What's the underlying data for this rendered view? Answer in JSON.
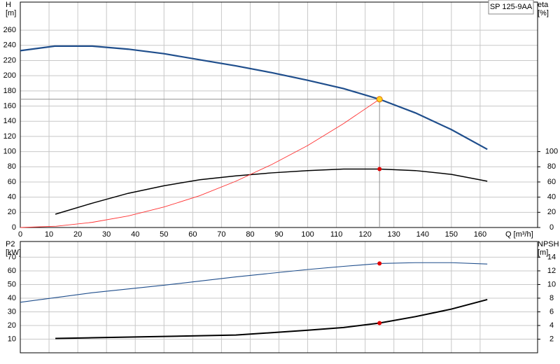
{
  "chart_data": [
    {
      "type": "line",
      "legend_label": "SP 125-9AA",
      "ylabel": [
        "H",
        "[m]"
      ],
      "y2label": [
        "eta",
        "[%]"
      ],
      "xlabel": "Q [m³/h]",
      "xlim": [
        0,
        180
      ],
      "ylim": [
        0,
        297
      ],
      "y2lim": [
        0,
        297
      ],
      "xticks": [
        0,
        10,
        20,
        30,
        40,
        50,
        60,
        70,
        80,
        90,
        100,
        110,
        120,
        130,
        140,
        150,
        160
      ],
      "yticks": [
        0,
        20,
        40,
        60,
        80,
        100,
        120,
        140,
        160,
        180,
        200,
        220,
        240,
        260
      ],
      "y2ticks": [
        0,
        20,
        40,
        60,
        80,
        100
      ],
      "grid": true,
      "series": [
        {
          "color": "#1f4e8c",
          "width": 2.2,
          "x": [
            0,
            12,
            25,
            37.5,
            50,
            62.5,
            75,
            87.5,
            100,
            112.5,
            125,
            137.5,
            150,
            162.5
          ],
          "values": [
            233,
            239,
            239,
            235,
            229,
            221,
            213,
            204,
            194,
            183,
            169,
            151,
            129,
            103
          ]
        },
        {
          "color": "#000000",
          "width": 1.5,
          "axis": "y2",
          "x": [
            12.2,
            25,
            37.5,
            50,
            62.5,
            75,
            87.5,
            100,
            112.5,
            125,
            137.5,
            150,
            162.5
          ],
          "values": [
            17.5,
            32,
            45,
            55,
            63,
            68,
            72,
            75,
            77,
            77,
            75,
            70,
            61
          ]
        },
        {
          "color": "#ff3030",
          "width": 0.9,
          "x": [
            0,
            12.5,
            25,
            37.5,
            50,
            62.5,
            75,
            87.5,
            100,
            112.5,
            125
          ],
          "values": [
            0,
            1.7,
            6.8,
            15.2,
            27,
            42,
            61,
            83,
            108,
            137,
            169
          ]
        }
      ],
      "markers": [
        {
          "x": 125,
          "y": 169,
          "color": "#ffd21f",
          "edge": "#e07000",
          "guide": true
        },
        {
          "x": 125,
          "y": 77,
          "axis": "y2",
          "color": "#e00000"
        }
      ]
    },
    {
      "type": "line",
      "ylabel": [
        "P2",
        "[kW]"
      ],
      "y2label": [
        "NPSH",
        "[m]"
      ],
      "xlim": [
        0,
        180
      ],
      "ylim": [
        0,
        81.5
      ],
      "y2lim": [
        0,
        16.3
      ],
      "xticks": [
        0,
        10,
        20,
        30,
        40,
        50,
        60,
        70,
        80,
        90,
        100,
        110,
        120,
        130,
        140,
        150,
        160
      ],
      "yticks": [
        10,
        20,
        30,
        40,
        50,
        60,
        70
      ],
      "y2ticks": [
        2,
        4,
        6,
        8,
        10,
        12,
        14
      ],
      "grid": true,
      "series": [
        {
          "color": "#1f4e8c",
          "width": 1.1,
          "x": [
            0,
            25,
            50,
            75,
            100,
            112.5,
            125,
            137.5,
            150,
            162.5
          ],
          "values": [
            37,
            44,
            49.5,
            55.6,
            61,
            63.3,
            65.4,
            66,
            66,
            65
          ]
        },
        {
          "color": "#000000",
          "width": 2,
          "axis": "y2",
          "x": [
            12.2,
            25,
            50,
            75,
            100,
            112.5,
            125,
            137.5,
            150,
            162.5
          ],
          "values": [
            2.1,
            2.2,
            2.4,
            2.6,
            3.3,
            3.7,
            4.36,
            5.3,
            6.4,
            7.8
          ]
        }
      ],
      "markers": [
        {
          "x": 125,
          "y": 65.4,
          "color": "#e00000"
        },
        {
          "x": 125,
          "y": 4.36,
          "axis": "y2",
          "color": "#e00000"
        }
      ]
    }
  ]
}
